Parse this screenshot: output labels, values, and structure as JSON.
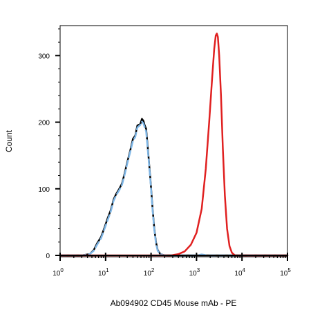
{
  "chart_data": {
    "type": "line",
    "xlabel": "Ab094902 CD45 Mouse mAb - PE",
    "ylabel": "Count",
    "x_scale": "log",
    "xlim": [
      1,
      100000
    ],
    "ylim": [
      0,
      345
    ],
    "x_ticks": [
      {
        "value": 1,
        "base": "10",
        "exp": "0"
      },
      {
        "value": 10,
        "base": "10",
        "exp": "1"
      },
      {
        "value": 100,
        "base": "10",
        "exp": "2"
      },
      {
        "value": 1000,
        "base": "10",
        "exp": "3"
      },
      {
        "value": 10000,
        "base": "10",
        "exp": "4"
      },
      {
        "value": 100000,
        "base": "10",
        "exp": "5"
      }
    ],
    "y_ticks": [
      0,
      100,
      200,
      300
    ],
    "grid": false,
    "series": [
      {
        "color": "#000000",
        "dash": "solid",
        "points": [
          [
            1,
            0
          ],
          [
            3,
            0
          ],
          [
            4.5,
            2
          ],
          [
            5.5,
            8
          ],
          [
            6.5,
            18
          ],
          [
            8,
            28
          ],
          [
            9.5,
            42
          ],
          [
            11,
            55
          ],
          [
            13,
            68
          ],
          [
            15,
            84
          ],
          [
            17,
            92
          ],
          [
            20,
            100
          ],
          [
            23,
            108
          ],
          [
            26,
            122
          ],
          [
            30,
            140
          ],
          [
            35,
            158
          ],
          [
            40,
            175
          ],
          [
            45,
            180
          ],
          [
            50,
            195
          ],
          [
            58,
            197
          ],
          [
            63,
            205
          ],
          [
            68,
            202
          ],
          [
            72,
            196
          ],
          [
            78,
            190
          ],
          [
            84,
            165
          ],
          [
            90,
            140
          ],
          [
            98,
            110
          ],
          [
            108,
            70
          ],
          [
            118,
            40
          ],
          [
            128,
            20
          ],
          [
            140,
            8
          ],
          [
            160,
            2
          ],
          [
            200,
            0
          ],
          [
            100000,
            0
          ]
        ]
      },
      {
        "color": "#7eb6e6",
        "dash": "dashed",
        "points": [
          [
            1,
            0
          ],
          [
            3,
            0
          ],
          [
            4.5,
            2
          ],
          [
            5.5,
            7
          ],
          [
            6.5,
            16
          ],
          [
            8,
            26
          ],
          [
            9.5,
            40
          ],
          [
            11,
            52
          ],
          [
            13,
            66
          ],
          [
            15,
            82
          ],
          [
            17,
            90
          ],
          [
            20,
            98
          ],
          [
            23,
            106
          ],
          [
            26,
            120
          ],
          [
            30,
            138
          ],
          [
            35,
            156
          ],
          [
            40,
            172
          ],
          [
            45,
            178
          ],
          [
            50,
            192
          ],
          [
            58,
            196
          ],
          [
            63,
            201
          ],
          [
            68,
            198
          ],
          [
            72,
            193
          ],
          [
            78,
            186
          ],
          [
            84,
            162
          ],
          [
            90,
            138
          ],
          [
            98,
            108
          ],
          [
            108,
            68
          ],
          [
            118,
            38
          ],
          [
            128,
            18
          ],
          [
            140,
            7
          ],
          [
            160,
            2
          ],
          [
            200,
            0
          ],
          [
            1000,
            0
          ],
          [
            1300,
            1.5
          ],
          [
            1700,
            0
          ],
          [
            100000,
            0
          ]
        ]
      },
      {
        "color": "#e02020",
        "dash": "solid",
        "points": [
          [
            1,
            0
          ],
          [
            280,
            0
          ],
          [
            400,
            2
          ],
          [
            550,
            6
          ],
          [
            750,
            16
          ],
          [
            1000,
            34
          ],
          [
            1300,
            70
          ],
          [
            1600,
            130
          ],
          [
            1900,
            200
          ],
          [
            2200,
            265
          ],
          [
            2450,
            310
          ],
          [
            2650,
            330
          ],
          [
            2800,
            333
          ],
          [
            2950,
            328
          ],
          [
            3150,
            300
          ],
          [
            3450,
            240
          ],
          [
            3800,
            160
          ],
          [
            4200,
            90
          ],
          [
            4700,
            40
          ],
          [
            5300,
            14
          ],
          [
            6000,
            4
          ],
          [
            7000,
            0
          ],
          [
            100000,
            0
          ]
        ]
      }
    ]
  }
}
